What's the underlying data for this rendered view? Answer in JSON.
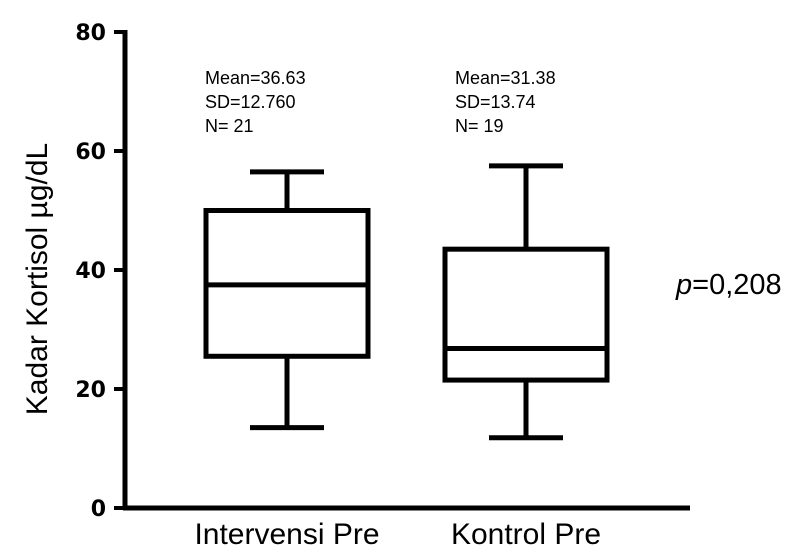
{
  "chart_data": {
    "type": "box",
    "ylabel": "Kadar Kortisol  µg/dL",
    "ylim": [
      0,
      80
    ],
    "yticks": [
      "0",
      "20",
      "40",
      "60",
      "80"
    ],
    "categories": [
      "Intervensi Pre",
      "Kontrol Pre"
    ],
    "boxes": [
      {
        "category": "Intervensi Pre",
        "whisker_low": 13.5,
        "q1": 25.5,
        "median": 37.5,
        "q3": 50.0,
        "whisker_high": 56.5,
        "stats": [
          "Mean=36.63",
          "SD=12.760",
          "N= 21"
        ]
      },
      {
        "category": "Kontrol Pre",
        "whisker_low": 11.8,
        "q1": 21.5,
        "median": 26.8,
        "q3": 43.5,
        "whisker_high": 57.5,
        "stats": [
          "Mean=31.38",
          "SD=13.74",
          "N= 19"
        ]
      }
    ],
    "annotation": {
      "p_symbol": "p",
      "p_value": "=0,208"
    }
  }
}
